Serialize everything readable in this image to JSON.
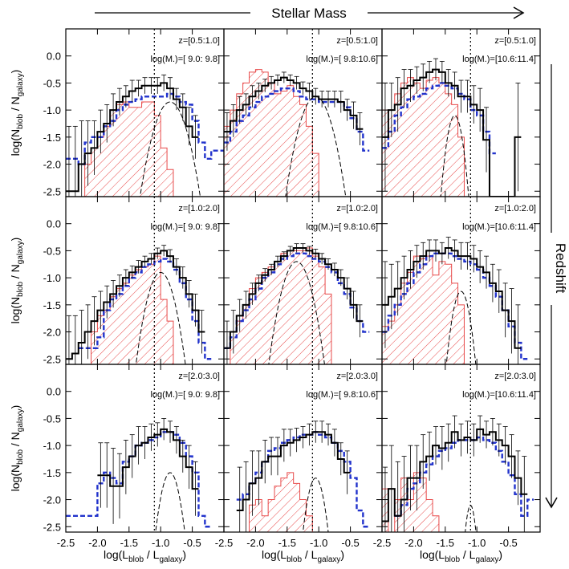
{
  "figure": {
    "top_label": "Stellar Mass",
    "right_label": "Redshift"
  },
  "chart_data": {
    "type": "bar",
    "layout": "3x3 grid of histograms; columns = stellar mass bins, rows = redshift bins",
    "xlabel_main": "log(L",
    "xlabel_sub1": "blob",
    "xlabel_mid": " / L",
    "xlabel_sub2": "galaxy",
    "xlabel_end": ")",
    "ylabel_main": "log(N",
    "ylabel_sub1": "blob",
    "ylabel_mid": " / N",
    "ylabel_sub2": "galaxy",
    "ylabel_end": ")",
    "xlim": [
      -2.5,
      0.0
    ],
    "ylim": [
      -2.6,
      0.5
    ],
    "x_ticks": [
      -2.5,
      -2.0,
      -1.5,
      -1.0,
      -0.5
    ],
    "x_tick_labels": [
      "-2.5",
      "-2.0",
      "-1.5",
      "-1.0",
      "-0.5"
    ],
    "y_ticks": [
      -2.5,
      -2.0,
      -1.5,
      -1.0,
      -0.5,
      0.0
    ],
    "y_tick_labels": [
      "-2.5",
      "-2.0",
      "-1.5",
      "-1.0",
      "-0.5",
      "0.0"
    ],
    "vline_x": -1.1,
    "bin_edges": [
      -2.5,
      -2.4,
      -2.3,
      -2.2,
      -2.1,
      -2.0,
      -1.9,
      -1.8,
      -1.7,
      -1.6,
      -1.5,
      -1.4,
      -1.3,
      -1.2,
      -1.1,
      -1.0,
      -0.9,
      -0.8,
      -0.7,
      -0.6,
      -0.5,
      -0.4,
      -0.3,
      -0.2,
      -0.1,
      0.0
    ],
    "colors": {
      "observed": "#000000",
      "model_blue": "#2233cc",
      "hatched_red": "#e84a4a",
      "component_dashed": "#000000"
    },
    "column_labels": [
      "log(M*)=[ 9.0: 9.8]",
      "log(M*)=[ 9.8:10.6]",
      "log(M*)=[10.6:11.4]"
    ],
    "row_labels": [
      "z=[0.5:1.0]",
      "z=[1.0:2.0]",
      "z=[2.0:3.0]"
    ],
    "panels": [
      {
        "row": 0,
        "col": 0,
        "z_label": "z=[0.5:1.0]",
        "mass_label": "log(M.)=[ 9.0: 9.8]",
        "observed": [
          -2.5,
          -2.5,
          -2.0,
          -1.8,
          -1.7,
          -1.4,
          -1.25,
          -1.0,
          -0.85,
          -0.75,
          -0.65,
          -0.6,
          -0.55,
          -0.55,
          -0.55,
          -0.5,
          -0.6,
          -0.8,
          -0.95,
          -1.3,
          -1.5,
          null,
          null,
          null,
          null
        ],
        "errors": [
          1.2,
          1.2,
          0.8,
          0.6,
          0.5,
          0.4,
          0.35,
          0.3,
          0.25,
          0.2,
          0.2,
          0.15,
          0.15,
          0.15,
          0.15,
          0.15,
          0.2,
          0.2,
          0.25,
          0.35,
          0.4,
          null,
          null,
          null,
          null
        ],
        "model_blue": [
          -1.9,
          -1.9,
          -2.0,
          -1.6,
          -1.5,
          -1.5,
          -1.3,
          -1.2,
          -1.0,
          -0.9,
          -0.85,
          -0.8,
          -0.75,
          -0.75,
          -0.75,
          -0.75,
          -0.7,
          -0.75,
          -0.85,
          -0.9,
          -1.2,
          -1.6,
          -1.9,
          -1.75,
          -1.75
        ],
        "hatched_red": [
          -2.6,
          -2.6,
          -2.6,
          -2.0,
          -1.7,
          -1.5,
          -1.3,
          -1.0,
          -0.9,
          -0.85,
          -0.95,
          -0.95,
          -0.85,
          -0.85,
          -1.1,
          -1.7,
          -2.1,
          -2.6,
          -2.6,
          -2.6,
          -2.6,
          -2.6,
          -2.6,
          -2.6,
          -2.6
        ],
        "component_dashed": {
          "center": -0.85,
          "peak": -0.85,
          "width": 0.36
        }
      },
      {
        "row": 0,
        "col": 1,
        "z_label": "z=[0.5:1.0]",
        "mass_label": "log(M.)=[ 9.8:10.6]",
        "observed": [
          -1.4,
          -1.2,
          -1.0,
          -0.9,
          -0.75,
          -0.65,
          -0.55,
          -0.5,
          -0.45,
          -0.4,
          -0.45,
          -0.5,
          -0.6,
          -0.65,
          -0.75,
          -0.8,
          -0.8,
          -0.8,
          -0.85,
          -1.0,
          -1.1,
          -1.35,
          null,
          null,
          null
        ],
        "errors": [
          0.35,
          0.3,
          0.25,
          0.2,
          0.2,
          0.15,
          0.12,
          0.12,
          0.1,
          0.1,
          0.1,
          0.12,
          0.12,
          0.15,
          0.15,
          0.15,
          0.15,
          0.15,
          0.2,
          0.2,
          0.25,
          0.3,
          null,
          null,
          null
        ],
        "model_blue": [
          -1.6,
          -1.4,
          -1.2,
          -1.1,
          -0.95,
          -0.85,
          -0.75,
          -0.7,
          -0.65,
          -0.6,
          -0.6,
          -0.65,
          -0.75,
          -0.8,
          -0.8,
          -0.85,
          -0.85,
          -0.85,
          -0.85,
          -0.95,
          -1.15,
          -1.4,
          -1.75,
          null,
          null
        ],
        "hatched_red": [
          -1.3,
          -1.0,
          -0.7,
          -0.5,
          -0.3,
          -0.25,
          -0.3,
          -0.5,
          -0.7,
          -0.65,
          -0.55,
          -0.75,
          -0.9,
          -1.3,
          -1.8,
          -2.6,
          -2.6,
          -2.6,
          -2.6,
          -2.6,
          -2.6,
          -2.6,
          -2.6,
          -2.6,
          -2.6
        ],
        "component_dashed": {
          "center": -1.05,
          "peak": -0.75,
          "width": 0.35
        }
      },
      {
        "row": 0,
        "col": 2,
        "z_label": "z=[0.5:1.0]",
        "mass_label": "log(M.)=[10.6:11.4]",
        "observed": [
          -1.5,
          -1.0,
          -0.9,
          -0.6,
          -0.55,
          -0.45,
          -0.4,
          -0.3,
          -0.25,
          -0.3,
          -0.5,
          -0.55,
          -0.75,
          -0.75,
          -0.9,
          -1.0,
          -1.55,
          -2.6,
          -2.6,
          -2.6,
          -2.6,
          -1.5,
          null,
          null,
          null
        ],
        "errors": [
          1.0,
          0.5,
          0.5,
          0.35,
          0.3,
          0.25,
          0.25,
          0.2,
          0.2,
          0.2,
          0.25,
          0.25,
          0.3,
          0.3,
          0.35,
          0.4,
          0.6,
          null,
          null,
          null,
          null,
          1.0,
          null,
          null,
          null
        ],
        "model_blue": [
          -1.7,
          -1.4,
          -1.1,
          -0.95,
          -0.8,
          -0.75,
          -0.7,
          -0.6,
          -0.55,
          -0.5,
          -0.55,
          -0.6,
          -0.7,
          -0.8,
          -1.0,
          -1.1,
          -1.4,
          -1.8,
          null,
          null,
          null,
          null,
          null,
          null,
          null
        ],
        "hatched_red": [
          -1.0,
          -1.0,
          -0.7,
          -0.5,
          -0.4,
          -0.5,
          -0.6,
          -0.45,
          -0.4,
          -0.5,
          -0.7,
          -0.9,
          -1.5,
          -2.6,
          -2.6,
          -2.6,
          -2.6,
          -2.6,
          -2.6,
          -2.6,
          -2.6,
          -2.6,
          -2.6,
          -2.6,
          -2.6
        ],
        "component_dashed": {
          "center": -1.35,
          "peak": -1.1,
          "width": 0.18
        }
      },
      {
        "row": 1,
        "col": 0,
        "z_label": "z=[1.0:2.0]",
        "mass_label": "log(M.)=[ 9.0: 9.8]",
        "observed": [
          -2.5,
          -2.4,
          -2.2,
          -2.0,
          -1.8,
          -1.6,
          -1.45,
          -1.3,
          -1.15,
          -1.0,
          -0.9,
          -0.8,
          -0.7,
          -0.65,
          -0.55,
          -0.5,
          -0.6,
          -0.8,
          -1.0,
          -1.3,
          -1.6,
          -2.0,
          null,
          null,
          null
        ],
        "errors": [
          0.8,
          0.7,
          0.6,
          0.5,
          0.45,
          0.35,
          0.3,
          0.25,
          0.2,
          0.15,
          0.12,
          0.12,
          0.1,
          0.1,
          0.1,
          0.1,
          0.12,
          0.15,
          0.2,
          0.25,
          0.3,
          0.4,
          null,
          null,
          null
        ],
        "model_blue": [
          null,
          null,
          -2.3,
          -2.3,
          -2.3,
          -2.1,
          -1.6,
          -1.4,
          -1.3,
          -1.15,
          -1.0,
          -0.9,
          -0.8,
          -0.75,
          -0.7,
          -0.65,
          -0.7,
          -0.85,
          -1.1,
          -1.4,
          -1.8,
          -2.2,
          -2.5,
          null,
          null
        ],
        "hatched_red": [
          -2.6,
          -2.6,
          -2.6,
          -2.6,
          -2.0,
          -1.7,
          -1.6,
          -1.35,
          -1.2,
          -1.1,
          -0.95,
          -0.85,
          -0.8,
          -0.75,
          -0.6,
          -1.4,
          -1.8,
          -2.6,
          -2.6,
          -2.6,
          -2.6,
          -2.6,
          -2.6,
          -2.6,
          -2.6
        ],
        "component_dashed": {
          "center": -1.0,
          "peak": -0.9,
          "width": 0.3
        }
      },
      {
        "row": 1,
        "col": 1,
        "z_label": "z=[1.0:2.0]",
        "mass_label": "log(M.)=[ 9.8:10.6]",
        "observed": [
          -2.3,
          -2.0,
          -1.7,
          -1.5,
          -1.3,
          -1.1,
          -0.95,
          -0.85,
          -0.7,
          -0.6,
          -0.5,
          -0.45,
          -0.45,
          -0.5,
          -0.55,
          -0.65,
          -0.75,
          -0.85,
          -1.0,
          -1.2,
          -1.5,
          -1.8,
          null,
          null,
          null
        ],
        "errors": [
          0.5,
          0.4,
          0.3,
          0.25,
          0.2,
          0.15,
          0.12,
          0.1,
          0.1,
          0.08,
          0.08,
          0.08,
          0.08,
          0.08,
          0.08,
          0.1,
          0.1,
          0.12,
          0.15,
          0.2,
          0.25,
          0.3,
          null,
          null,
          null
        ],
        "model_blue": [
          -2.3,
          -2.1,
          -1.8,
          -1.6,
          -1.4,
          -1.2,
          -1.0,
          -0.9,
          -0.75,
          -0.65,
          -0.6,
          -0.55,
          -0.55,
          -0.6,
          -0.65,
          -0.7,
          -0.8,
          -0.9,
          -1.1,
          -1.3,
          -1.55,
          -1.8,
          -2.0,
          null,
          null
        ],
        "hatched_red": [
          -2.6,
          -2.0,
          -1.8,
          -1.5,
          -1.2,
          -1.0,
          -0.9,
          -0.8,
          -0.7,
          -0.55,
          -0.5,
          -0.5,
          -0.5,
          -0.45,
          -0.6,
          -0.8,
          -1.3,
          -2.6,
          -2.6,
          -2.6,
          -2.6,
          -2.6,
          -2.6,
          -2.6,
          -2.6
        ],
        "component_dashed": {
          "center": -1.35,
          "peak": -0.7,
          "width": 0.32
        }
      },
      {
        "row": 1,
        "col": 2,
        "z_label": "z=[1.0:2.0]",
        "mass_label": "log(M.)=[10.6:11.4]",
        "observed": [
          -1.5,
          -1.35,
          -1.2,
          -1.0,
          -0.85,
          -0.7,
          -0.6,
          -0.5,
          -0.5,
          -0.55,
          -0.45,
          -0.5,
          -0.6,
          -0.6,
          -0.65,
          -0.8,
          -0.9,
          -1.1,
          -1.25,
          -1.6,
          -1.8,
          -2.3,
          null,
          null,
          null
        ],
        "errors": [
          0.8,
          0.6,
          0.5,
          0.4,
          0.35,
          0.3,
          0.25,
          0.2,
          0.2,
          0.2,
          0.2,
          0.2,
          0.25,
          0.25,
          0.25,
          0.3,
          0.3,
          0.35,
          0.4,
          0.5,
          0.6,
          0.8,
          null,
          null,
          null
        ],
        "model_blue": [
          -2.0,
          -1.7,
          -1.5,
          -1.3,
          -1.1,
          -0.9,
          -0.75,
          -0.6,
          -0.55,
          -0.55,
          -0.55,
          -0.6,
          -0.65,
          -0.7,
          -0.75,
          -0.85,
          -1.0,
          -1.15,
          -1.35,
          -1.6,
          -1.9,
          -2.2,
          -2.5,
          null,
          null
        ],
        "hatched_red": [
          -1.9,
          -1.8,
          -1.5,
          -1.1,
          -0.9,
          -0.6,
          -0.65,
          -0.6,
          -0.95,
          -0.7,
          -0.75,
          -1.1,
          -1.5,
          -2.6,
          -2.6,
          -2.6,
          -2.6,
          -2.6,
          -2.6,
          -2.6,
          -2.6,
          -2.6,
          -2.6,
          -2.6,
          -2.6
        ],
        "component_dashed": {
          "center": -1.25,
          "peak": -1.25,
          "width": 0.2
        }
      },
      {
        "row": 2,
        "col": 0,
        "z_label": "z=[2.0:3.0]",
        "mass_label": "log(M.)=[ 9.0: 9.8]",
        "observed": [
          null,
          null,
          null,
          null,
          null,
          -1.55,
          -1.55,
          -1.75,
          -1.75,
          -1.4,
          -1.2,
          -1.0,
          -0.95,
          -0.85,
          -0.8,
          -0.7,
          -0.75,
          -0.9,
          -1.2,
          -1.4,
          -1.8,
          null,
          null,
          null,
          null
        ],
        "errors": [
          null,
          null,
          null,
          null,
          null,
          0.6,
          0.6,
          0.7,
          0.6,
          0.5,
          0.4,
          0.35,
          0.3,
          0.25,
          0.22,
          0.2,
          0.2,
          0.25,
          0.3,
          0.4,
          0.5,
          null,
          null,
          null,
          null
        ],
        "model_blue": [
          -2.3,
          -2.3,
          -2.3,
          -2.3,
          -2.3,
          -1.7,
          -1.5,
          -1.6,
          -1.7,
          -1.3,
          -1.2,
          -1.0,
          -0.95,
          -0.9,
          -0.85,
          -0.75,
          -0.75,
          -0.8,
          -0.95,
          -1.2,
          -1.5,
          -2.3,
          -2.5,
          null,
          null
        ],
        "hatched_red": [
          -2.6,
          -2.6,
          -2.6,
          -2.6,
          -2.6,
          -2.6,
          -2.6,
          -2.6,
          -2.6,
          -2.6,
          -2.6,
          -2.6,
          -2.6,
          -2.6,
          -2.6,
          -2.6,
          -2.6,
          -2.6,
          -2.6,
          -2.6,
          -2.6,
          -2.6,
          -2.6,
          -2.6,
          -2.6
        ],
        "component_dashed": {
          "center": -0.85,
          "peak": -1.5,
          "width": 0.22
        }
      },
      {
        "row": 2,
        "col": 1,
        "z_label": "z=[2.0:3.0]",
        "mass_label": "log(M.)=[ 9.8:10.6]",
        "observed": [
          null,
          null,
          -2.2,
          -2.0,
          -1.7,
          -1.6,
          -1.3,
          -1.2,
          -1.2,
          -1.0,
          -0.95,
          -0.9,
          -0.85,
          -0.8,
          -0.75,
          -0.75,
          -0.8,
          -0.95,
          -1.25,
          -1.5,
          null,
          null,
          null,
          null,
          null
        ],
        "errors": [
          null,
          null,
          0.8,
          0.7,
          0.6,
          0.5,
          0.4,
          0.35,
          0.35,
          0.3,
          0.25,
          0.22,
          0.2,
          0.2,
          0.2,
          0.2,
          0.2,
          0.25,
          0.3,
          0.4,
          null,
          null,
          null,
          null,
          null
        ],
        "model_blue": [
          null,
          null,
          -2.0,
          -1.9,
          -1.7,
          -1.5,
          -1.3,
          -1.1,
          -1.05,
          -0.95,
          -0.9,
          -0.85,
          -0.8,
          -0.8,
          -0.75,
          -0.8,
          -0.85,
          -0.95,
          -1.1,
          -1.3,
          -1.6,
          -2.2,
          -2.5,
          null,
          null
        ],
        "hatched_red": [
          -2.6,
          -2.6,
          -2.6,
          -2.6,
          -2.1,
          -2.0,
          -2.3,
          -2.0,
          -1.75,
          -1.6,
          -1.5,
          -1.7,
          -2.0,
          -2.3,
          -2.6,
          -2.6,
          -2.6,
          -2.6,
          -2.6,
          -2.6,
          -2.6,
          -2.6,
          -2.6,
          -2.6,
          -2.6
        ],
        "component_dashed": {
          "center": -1.05,
          "peak": -1.6,
          "width": 0.2
        }
      },
      {
        "row": 2,
        "col": 2,
        "z_label": "z=[2.0:3.0]",
        "mass_label": "log(M.)=[10.6:11.4]",
        "observed": [
          -2.4,
          -1.8,
          -2.3,
          -2.0,
          -1.6,
          -1.6,
          -1.3,
          -1.2,
          -1.0,
          -1.05,
          -0.95,
          -0.75,
          -0.9,
          -0.85,
          -0.9,
          -0.7,
          -0.8,
          -0.75,
          -0.9,
          -1.0,
          -1.2,
          -1.6,
          -1.9,
          null,
          null
        ],
        "errors": [
          1.0,
          0.8,
          1.0,
          0.8,
          0.6,
          0.6,
          0.5,
          0.45,
          0.35,
          0.4,
          0.35,
          0.3,
          0.3,
          0.3,
          0.3,
          0.25,
          0.25,
          0.25,
          0.3,
          0.35,
          0.4,
          0.5,
          0.7,
          null,
          null
        ],
        "model_blue": [
          null,
          null,
          -2.3,
          -2.1,
          -1.8,
          -1.7,
          -1.5,
          -1.35,
          -1.2,
          -1.1,
          -1.05,
          -0.95,
          -0.9,
          -0.9,
          -0.9,
          -0.85,
          -0.9,
          -0.95,
          -1.1,
          -1.3,
          -1.55,
          -1.9,
          -2.3,
          -2.0,
          null
        ],
        "hatched_red": [
          -1.8,
          -2.6,
          -2.0,
          -1.6,
          -2.0,
          -1.5,
          -1.6,
          -2.0,
          -2.3,
          -2.6,
          -2.6,
          -2.6,
          -2.6,
          -2.6,
          -2.6,
          -2.6,
          -2.6,
          -2.6,
          -2.6,
          -2.6,
          -2.6,
          -2.6,
          -2.6,
          -2.6,
          -2.6
        ],
        "component_dashed": {
          "center": -1.1,
          "peak": -2.1,
          "width": 0.12
        }
      }
    ]
  }
}
